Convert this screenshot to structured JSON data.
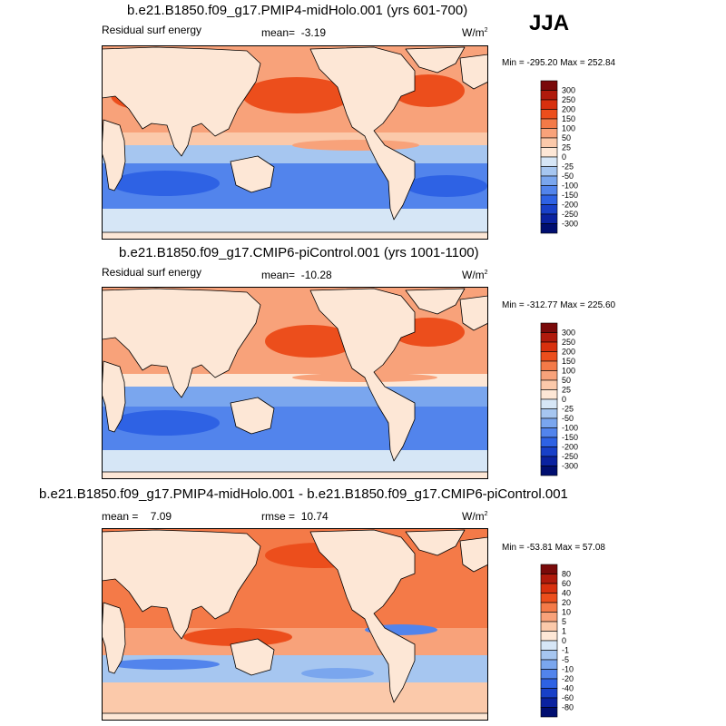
{
  "season": "JJA",
  "chart_data": [
    {
      "type": "heatmap",
      "title": "b.e21.B1850.f09_g17.PMIP4-midHolo.001 (yrs 601-700)",
      "variable": "Residual surf energy",
      "mean_label": "mean=",
      "mean": "-3.19",
      "units": "W/m",
      "units_sup": "2",
      "min_max_text": "Min = -295.20 Max = 252.84",
      "min": -295.2,
      "max": 252.84,
      "colorbar_levels": [
        "300",
        "250",
        "200",
        "150",
        "100",
        "50",
        "25",
        "0",
        "-25",
        "-50",
        "-100",
        "-150",
        "-200",
        "-250",
        "-300"
      ],
      "colorbar_colors": [
        "#7a0a0a",
        "#b01a0c",
        "#d8300e",
        "#ec4e1c",
        "#f47a48",
        "#f8a27a",
        "#fbc9aa",
        "#fde7d6",
        "#d6e6f6",
        "#a6c6f0",
        "#7aa6ee",
        "#5284ec",
        "#2e62e4",
        "#1840c8",
        "#0a22a0",
        "#000e70"
      ]
    },
    {
      "type": "heatmap",
      "title": "b.e21.B1850.f09_g17.CMIP6-piControl.001 (yrs 1001-1100)",
      "variable": "Residual surf energy",
      "mean_label": "mean=",
      "mean": "-10.28",
      "units": "W/m",
      "units_sup": "2",
      "min_max_text": "Min = -312.77 Max = 225.60",
      "min": -312.77,
      "max": 225.6,
      "colorbar_levels": [
        "300",
        "250",
        "200",
        "150",
        "100",
        "50",
        "25",
        "0",
        "-25",
        "-50",
        "-100",
        "-150",
        "-200",
        "-250",
        "-300"
      ],
      "colorbar_colors": [
        "#7a0a0a",
        "#b01a0c",
        "#d8300e",
        "#ec4e1c",
        "#f47a48",
        "#f8a27a",
        "#fbc9aa",
        "#fde7d6",
        "#d6e6f6",
        "#a6c6f0",
        "#7aa6ee",
        "#5284ec",
        "#2e62e4",
        "#1840c8",
        "#0a22a0",
        "#000e70"
      ]
    },
    {
      "type": "heatmap",
      "title": "b.e21.B1850.f09_g17.PMIP4-midHolo.001 - b.e21.B1850.f09_g17.CMIP6-piControl.001",
      "mean_label": "mean =",
      "mean": "7.09",
      "rmse_label": "rmse =",
      "rmse": "10.74",
      "units": "W/m",
      "units_sup": "2",
      "min_max_text": "Min = -53.81 Max = 57.08",
      "min": -53.81,
      "max": 57.08,
      "colorbar_levels": [
        "80",
        "60",
        "40",
        "20",
        "10",
        "5",
        "1",
        "0",
        "-1",
        "-5",
        "-10",
        "-20",
        "-40",
        "-60",
        "-80"
      ],
      "colorbar_colors": [
        "#7a0a0a",
        "#b01a0c",
        "#d8300e",
        "#ec4e1c",
        "#f47a48",
        "#f8a27a",
        "#fbc9aa",
        "#fde7d6",
        "#d6e6f6",
        "#a6c6f0",
        "#7aa6ee",
        "#5284ec",
        "#2e62e4",
        "#1840c8",
        "#0a22a0",
        "#000e70"
      ]
    }
  ]
}
